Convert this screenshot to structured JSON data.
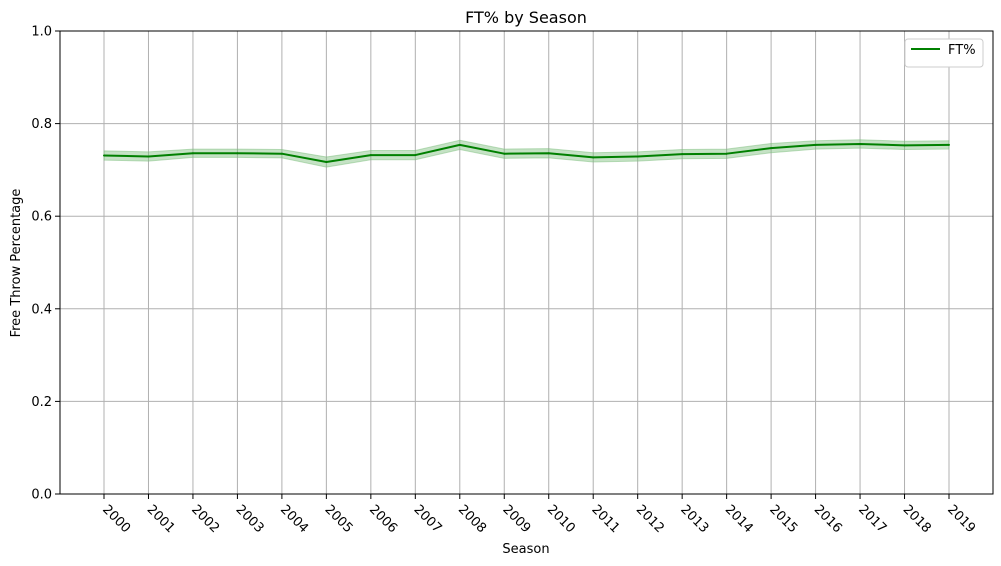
{
  "chart_data": {
    "type": "line",
    "title": "FT% by Season",
    "xlabel": "Season",
    "ylabel": "Free Throw Percentage",
    "x": [
      "2000",
      "2001",
      "2002",
      "2003",
      "2004",
      "2005",
      "2006",
      "2007",
      "2008",
      "2009",
      "2010",
      "2011",
      "2012",
      "2013",
      "2014",
      "2015",
      "2016",
      "2017",
      "2018",
      "2019"
    ],
    "series": [
      {
        "name": "FT%",
        "color": "#008000",
        "values": [
          0.731,
          0.729,
          0.736,
          0.736,
          0.735,
          0.717,
          0.732,
          0.732,
          0.754,
          0.735,
          0.736,
          0.727,
          0.729,
          0.734,
          0.735,
          0.747,
          0.754,
          0.756,
          0.753,
          0.754
        ],
        "band_lower": [
          0.721,
          0.719,
          0.727,
          0.727,
          0.726,
          0.706,
          0.722,
          0.722,
          0.744,
          0.725,
          0.726,
          0.717,
          0.719,
          0.724,
          0.725,
          0.737,
          0.745,
          0.747,
          0.744,
          0.745
        ],
        "band_upper": [
          0.741,
          0.739,
          0.745,
          0.745,
          0.744,
          0.728,
          0.742,
          0.742,
          0.764,
          0.745,
          0.746,
          0.737,
          0.739,
          0.744,
          0.745,
          0.757,
          0.763,
          0.765,
          0.762,
          0.763
        ],
        "band_color": "#7fbf7f"
      }
    ],
    "ylim": [
      0.0,
      1.0
    ],
    "yticks": [
      "0.0",
      "0.2",
      "0.4",
      "0.6",
      "0.8",
      "1.0"
    ],
    "ytick_values": [
      0.0,
      0.2,
      0.4,
      0.6,
      0.8,
      1.0
    ],
    "grid": true,
    "legend_position": "top-right"
  }
}
